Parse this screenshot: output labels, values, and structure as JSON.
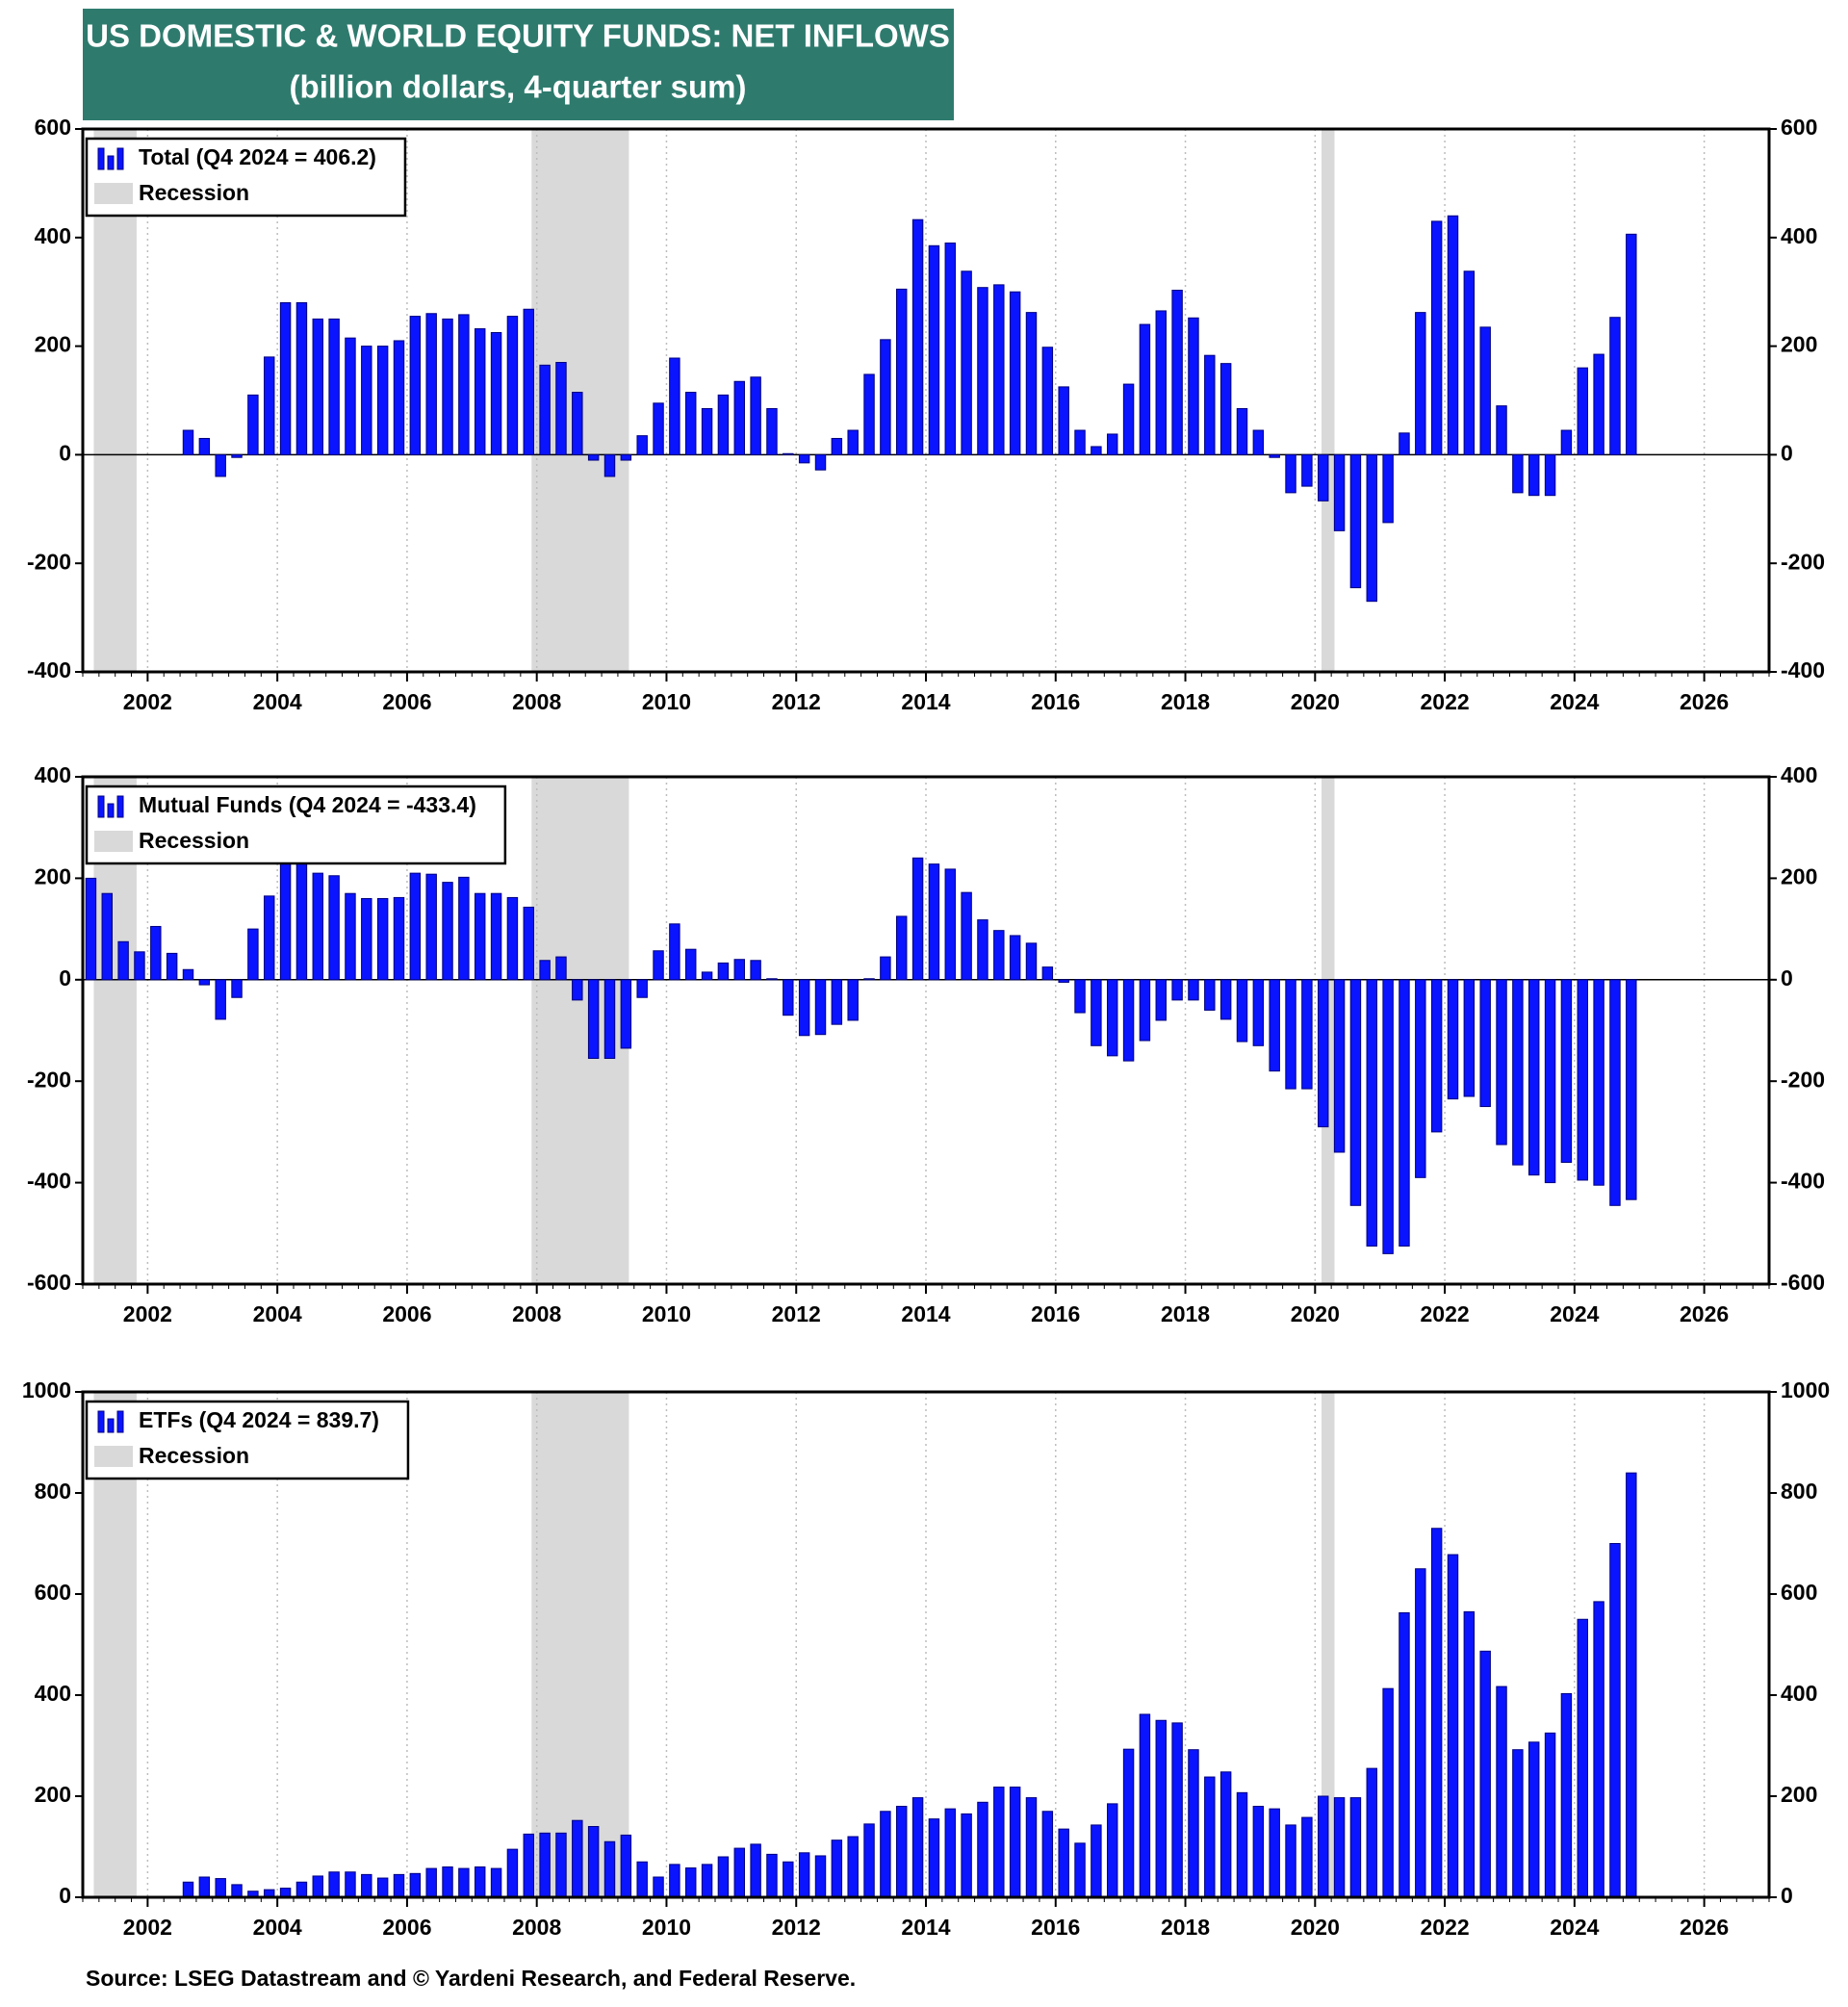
{
  "title": "US DOMESTIC & WORLD EQUITY FUNDS: NET INFLOWS",
  "subtitle": "(billion dollars, 4-quarter sum)",
  "source": "Source: LSEG Datastream and © Yardeni Research, and Federal Reserve.",
  "chart_data": [
    {
      "type": "bar",
      "x": [
        2002.625,
        2002.875,
        2003.125,
        2003.375,
        2003.625,
        2003.875,
        2004.125,
        2004.375,
        2004.625,
        2004.875,
        2005.125,
        2005.375,
        2005.625,
        2005.875,
        2006.125,
        2006.375,
        2006.625,
        2006.875,
        2007.125,
        2007.375,
        2007.625,
        2007.875,
        2008.125,
        2008.375,
        2008.625,
        2008.875,
        2009.125,
        2009.375,
        2009.625,
        2009.875,
        2010.125,
        2010.375,
        2010.625,
        2010.875,
        2011.125,
        2011.375,
        2011.625,
        2011.875,
        2012.125,
        2012.375,
        2012.625,
        2012.875,
        2013.125,
        2013.375,
        2013.625,
        2013.875,
        2014.125,
        2014.375,
        2014.625,
        2014.875,
        2015.125,
        2015.375,
        2015.625,
        2015.875,
        2016.125,
        2016.375,
        2016.625,
        2016.875,
        2017.125,
        2017.375,
        2017.625,
        2017.875,
        2018.125,
        2018.375,
        2018.625,
        2018.875,
        2019.125,
        2019.375,
        2019.625,
        2019.875,
        2020.125,
        2020.375,
        2020.625,
        2020.875,
        2021.125,
        2021.375,
        2021.625,
        2021.875,
        2022.125,
        2022.375,
        2022.625,
        2022.875,
        2023.125,
        2023.375,
        2023.625,
        2023.875,
        2024.125,
        2024.375,
        2024.625,
        2024.875
      ],
      "series": [
        {
          "name": "Total (Q4 2024 = 406.2)",
          "color": "#0a14ff",
          "values": [
            45,
            30,
            -40,
            -5,
            110,
            180,
            280,
            280,
            250,
            250,
            215,
            200,
            200,
            210,
            255,
            260,
            250,
            258,
            232,
            225,
            255,
            268,
            165,
            170,
            115,
            -10,
            -40,
            -10,
            35,
            95,
            178,
            115,
            85,
            110,
            135,
            143,
            85,
            2,
            -15,
            -28,
            30,
            45,
            148,
            212,
            305,
            433,
            385,
            390,
            338,
            308,
            313,
            300,
            262,
            198,
            125,
            45,
            15,
            38,
            130,
            240,
            265,
            303,
            252,
            183,
            168,
            85,
            45,
            -5,
            -70,
            -58,
            -85,
            -140,
            -245,
            -270,
            -125,
            40,
            262,
            430,
            440,
            338,
            235,
            90,
            -70,
            -75,
            -75,
            45,
            160,
            185,
            253,
            406.2
          ]
        }
      ],
      "recessions": {
        "name": "Recession",
        "color": "#d9d9d9",
        "ranges": [
          [
            2001.17,
            2001.83
          ],
          [
            2007.92,
            2009.42
          ],
          [
            2020.1,
            2020.3
          ]
        ]
      },
      "xlim": [
        2001,
        2027
      ],
      "xticks": [
        2002,
        2004,
        2006,
        2008,
        2010,
        2012,
        2014,
        2016,
        2018,
        2020,
        2022,
        2024,
        2026
      ],
      "ylim": [
        -400,
        600
      ],
      "yticks": [
        -400,
        -200,
        0,
        200,
        400,
        600
      ],
      "grid": true
    },
    {
      "type": "bar",
      "x": [
        2001.125,
        2001.375,
        2001.625,
        2001.875,
        2002.125,
        2002.375,
        2002.625,
        2002.875,
        2003.125,
        2003.375,
        2003.625,
        2003.875,
        2004.125,
        2004.375,
        2004.625,
        2004.875,
        2005.125,
        2005.375,
        2005.625,
        2005.875,
        2006.125,
        2006.375,
        2006.625,
        2006.875,
        2007.125,
        2007.375,
        2007.625,
        2007.875,
        2008.125,
        2008.375,
        2008.625,
        2008.875,
        2009.125,
        2009.375,
        2009.625,
        2009.875,
        2010.125,
        2010.375,
        2010.625,
        2010.875,
        2011.125,
        2011.375,
        2011.625,
        2011.875,
        2012.125,
        2012.375,
        2012.625,
        2012.875,
        2013.125,
        2013.375,
        2013.625,
        2013.875,
        2014.125,
        2014.375,
        2014.625,
        2014.875,
        2015.125,
        2015.375,
        2015.625,
        2015.875,
        2016.125,
        2016.375,
        2016.625,
        2016.875,
        2017.125,
        2017.375,
        2017.625,
        2017.875,
        2018.125,
        2018.375,
        2018.625,
        2018.875,
        2019.125,
        2019.375,
        2019.625,
        2019.875,
        2020.125,
        2020.375,
        2020.625,
        2020.875,
        2021.125,
        2021.375,
        2021.625,
        2021.875,
        2022.125,
        2022.375,
        2022.625,
        2022.875,
        2023.125,
        2023.375,
        2023.625,
        2023.875,
        2024.125,
        2024.375,
        2024.625,
        2024.875
      ],
      "series": [
        {
          "name": "Mutual Funds (Q4 2024 = -433.4)",
          "color": "#0a14ff",
          "values": [
            200,
            170,
            75,
            55,
            105,
            52,
            20,
            -10,
            -78,
            -35,
            100,
            165,
            235,
            235,
            210,
            205,
            170,
            160,
            160,
            162,
            210,
            208,
            192,
            202,
            170,
            170,
            162,
            143,
            38,
            45,
            -40,
            -155,
            -155,
            -135,
            -35,
            57,
            110,
            60,
            15,
            33,
            40,
            38,
            2,
            -70,
            -110,
            -108,
            -88,
            -80,
            2,
            45,
            125,
            240,
            228,
            218,
            172,
            118,
            97,
            87,
            72,
            25,
            -5,
            -65,
            -130,
            -150,
            -160,
            -120,
            -80,
            -40,
            -40,
            -60,
            -78,
            -122,
            -130,
            -180,
            -215,
            -215,
            -290,
            -340,
            -445,
            -525,
            -540,
            -525,
            -390,
            -300,
            -235,
            -230,
            -250,
            -325,
            -365,
            -385,
            -400,
            -360,
            -395,
            -405,
            -445,
            -433.4
          ]
        }
      ],
      "recessions": {
        "name": "Recession",
        "color": "#d9d9d9",
        "ranges": [
          [
            2001.17,
            2001.83
          ],
          [
            2007.92,
            2009.42
          ],
          [
            2020.1,
            2020.3
          ]
        ]
      },
      "xlim": [
        2001,
        2027
      ],
      "xticks": [
        2002,
        2004,
        2006,
        2008,
        2010,
        2012,
        2014,
        2016,
        2018,
        2020,
        2022,
        2024,
        2026
      ],
      "ylim": [
        -600,
        400
      ],
      "yticks": [
        -600,
        -400,
        -200,
        0,
        200,
        400
      ],
      "grid": true
    },
    {
      "type": "bar",
      "x": [
        2002.625,
        2002.875,
        2003.125,
        2003.375,
        2003.625,
        2003.875,
        2004.125,
        2004.375,
        2004.625,
        2004.875,
        2005.125,
        2005.375,
        2005.625,
        2005.875,
        2006.125,
        2006.375,
        2006.625,
        2006.875,
        2007.125,
        2007.375,
        2007.625,
        2007.875,
        2008.125,
        2008.375,
        2008.625,
        2008.875,
        2009.125,
        2009.375,
        2009.625,
        2009.875,
        2010.125,
        2010.375,
        2010.625,
        2010.875,
        2011.125,
        2011.375,
        2011.625,
        2011.875,
        2012.125,
        2012.375,
        2012.625,
        2012.875,
        2013.125,
        2013.375,
        2013.625,
        2013.875,
        2014.125,
        2014.375,
        2014.625,
        2014.875,
        2015.125,
        2015.375,
        2015.625,
        2015.875,
        2016.125,
        2016.375,
        2016.625,
        2016.875,
        2017.125,
        2017.375,
        2017.625,
        2017.875,
        2018.125,
        2018.375,
        2018.625,
        2018.875,
        2019.125,
        2019.375,
        2019.625,
        2019.875,
        2020.125,
        2020.375,
        2020.625,
        2020.875,
        2021.125,
        2021.375,
        2021.625,
        2021.875,
        2022.125,
        2022.375,
        2022.625,
        2022.875,
        2023.125,
        2023.375,
        2023.625,
        2023.875,
        2024.125,
        2024.375,
        2024.625,
        2024.875
      ],
      "series": [
        {
          "name": "ETFs (Q4 2024 = 839.7)",
          "color": "#0a14ff",
          "values": [
            30,
            40,
            37,
            25,
            12,
            15,
            18,
            30,
            42,
            50,
            50,
            45,
            38,
            45,
            47,
            57,
            60,
            57,
            60,
            57,
            95,
            125,
            127,
            127,
            152,
            140,
            110,
            123,
            70,
            40,
            65,
            58,
            65,
            80,
            97,
            105,
            85,
            70,
            88,
            82,
            113,
            120,
            145,
            170,
            180,
            197,
            155,
            175,
            165,
            188,
            218,
            218,
            197,
            170,
            135,
            107,
            143,
            185,
            293,
            362,
            350,
            345,
            292,
            238,
            248,
            207,
            180,
            175,
            143,
            158,
            200,
            197,
            197,
            255,
            413,
            563,
            650,
            730,
            678,
            565,
            487,
            417,
            292,
            307,
            325,
            403,
            550,
            585,
            700,
            839.7
          ]
        }
      ],
      "recessions": {
        "name": "Recession",
        "color": "#d9d9d9",
        "ranges": [
          [
            2001.17,
            2001.83
          ],
          [
            2007.92,
            2009.42
          ],
          [
            2020.1,
            2020.3
          ]
        ]
      },
      "xlim": [
        2001,
        2027
      ],
      "xticks": [
        2002,
        2004,
        2006,
        2008,
        2010,
        2012,
        2014,
        2016,
        2018,
        2020,
        2022,
        2024,
        2026
      ],
      "ylim": [
        0,
        1000
      ],
      "yticks": [
        0,
        200,
        400,
        600,
        800,
        1000
      ],
      "grid": true
    }
  ]
}
